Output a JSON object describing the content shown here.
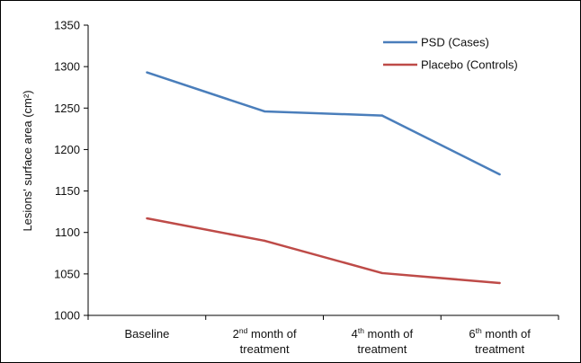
{
  "chart_data": {
    "type": "line",
    "title": "",
    "xlabel": "",
    "ylabel": "Lesions' surface area (cm²)",
    "ylim": [
      1000,
      1350
    ],
    "y_ticks": [
      1000,
      1050,
      1100,
      1150,
      1200,
      1250,
      1300,
      1350
    ],
    "grid": false,
    "legend_position": "top-right",
    "categories": [
      {
        "label": "Baseline"
      },
      {
        "label": "2nd month of treatment",
        "line1_pre": "2",
        "line1_sup": "nd",
        "line1_post": " month of",
        "line2": "treatment"
      },
      {
        "label": "4th month of treatment",
        "line1_pre": "4",
        "line1_sup": "th",
        "line1_post": " month of",
        "line2": "treatment"
      },
      {
        "label": "6th month of treatment",
        "line1_pre": "6",
        "line1_sup": "th",
        "line1_post": " month of",
        "line2": "treatment"
      }
    ],
    "series": [
      {
        "name": "PSD (Cases)",
        "color": "#4a7ebb",
        "values": [
          1293,
          1246,
          1241,
          1170
        ]
      },
      {
        "name": "Placebo (Controls)",
        "color": "#be4b48",
        "values": [
          1117,
          1090,
          1051,
          1039
        ]
      }
    ]
  }
}
